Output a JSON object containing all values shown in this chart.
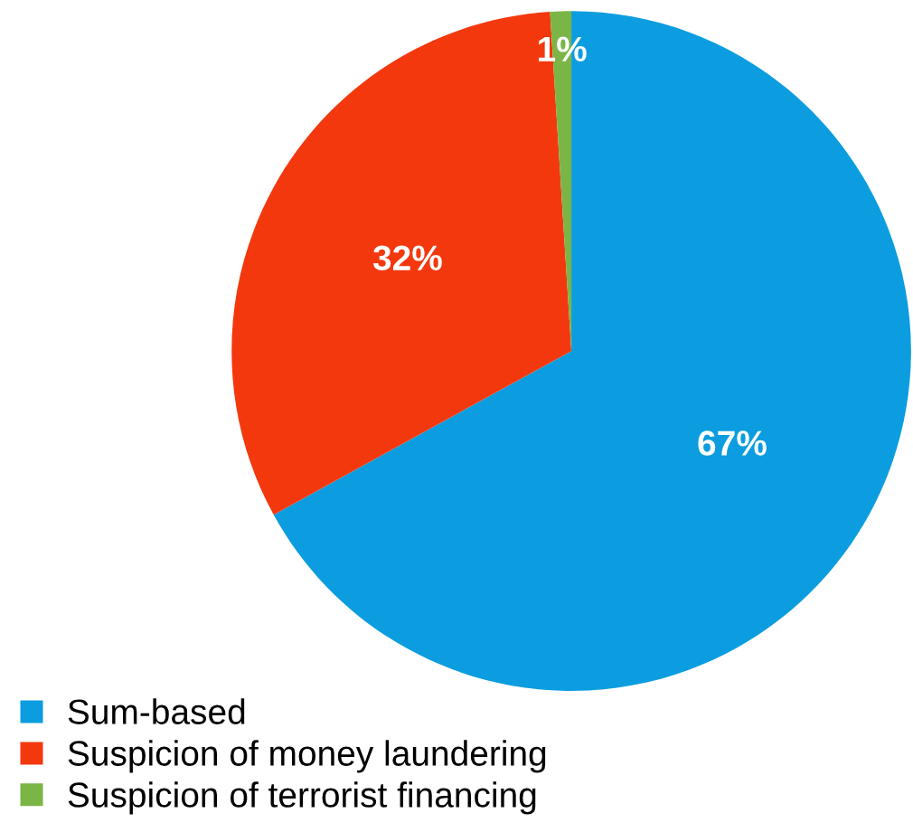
{
  "chart_data": {
    "type": "pie",
    "categories": [
      "Sum-based",
      "Suspicion of money laundering",
      "Suspicion of terrorist financing"
    ],
    "values": [
      67,
      32,
      1
    ],
    "colors": [
      "#0b9ddf",
      "#f4380e",
      "#7bb546"
    ],
    "value_labels": [
      "67%",
      "32%",
      "1%"
    ],
    "legend": "bottom left"
  }
}
